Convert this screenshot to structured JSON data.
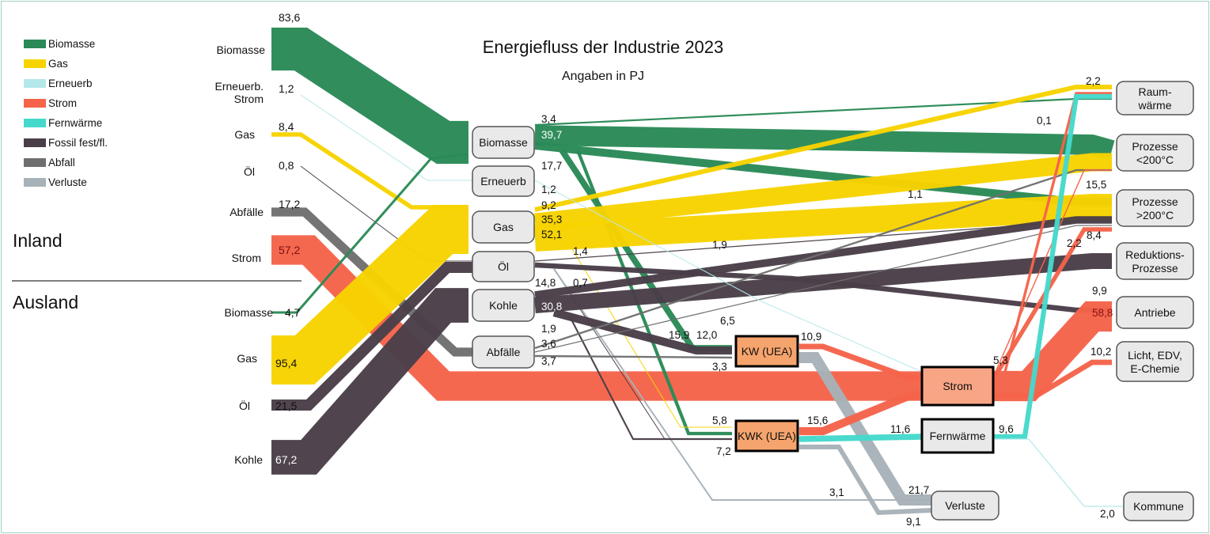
{
  "title": "Energiefluss der Industrie 2023",
  "subtitle": "Angaben in PJ",
  "regions": {
    "inland": "Inland",
    "ausland": "Ausland"
  },
  "colors": {
    "biomasse": "#2a8a57",
    "gas": "#f7d300",
    "erneuerb": "#b3e8ea",
    "strom": "#f5634a",
    "fernwaerme": "#45d9cb",
    "fossil": "#4a3f49",
    "abfall": "#6f6f6f",
    "verluste": "#a7b2b8",
    "node_fill": "#e9e9e9",
    "kw_fill": "#f6a46d",
    "strom_fill": "#f8a586"
  },
  "legend": [
    {
      "label": "Biomasse",
      "color": "biomasse"
    },
    {
      "label": "Gas",
      "color": "gas"
    },
    {
      "label": "Erneuerb",
      "color": "erneuerb"
    },
    {
      "label": "Strom",
      "color": "strom"
    },
    {
      "label": "Fernwärme",
      "color": "fernwaerme"
    },
    {
      "label": "Fossil fest/fl.",
      "color": "fossil"
    },
    {
      "label": "Abfall",
      "color": "abfall"
    },
    {
      "label": "Verluste",
      "color": "verluste"
    }
  ],
  "sources": [
    {
      "label": "Biomasse",
      "value": "83,6",
      "region": "Inland"
    },
    {
      "label": "Erneuerb. Strom",
      "value": "1,2",
      "region": "Inland"
    },
    {
      "label": "Gas",
      "value": "8,4",
      "region": "Inland"
    },
    {
      "label": "Öl",
      "value": "0,8",
      "region": "Inland"
    },
    {
      "label": "Abfälle",
      "value": "17,2",
      "region": "Inland"
    },
    {
      "label": "Strom",
      "value": "57,2",
      "region": "Inland"
    },
    {
      "label": "Biomasse",
      "value": "4,7",
      "region": "Ausland"
    },
    {
      "label": "Gas",
      "value": "95,4",
      "region": "Ausland"
    },
    {
      "label": "Öl",
      "value": "21,5",
      "region": "Ausland"
    },
    {
      "label": "Kohle",
      "value": "67,2",
      "region": "Ausland"
    }
  ],
  "nodes": [
    {
      "id": "biomasse",
      "label": "Biomasse",
      "style": "plain"
    },
    {
      "id": "erneuerb",
      "label": "Erneuerb",
      "style": "plain"
    },
    {
      "id": "gas",
      "label": "Gas",
      "style": "plain"
    },
    {
      "id": "oel",
      "label": "Öl",
      "style": "plain"
    },
    {
      "id": "kohle",
      "label": "Kohle",
      "style": "plain"
    },
    {
      "id": "abfaelle",
      "label": "Abfälle",
      "style": "plain"
    },
    {
      "id": "kw",
      "label": "KW (UEA)",
      "style": "kw"
    },
    {
      "id": "kwk",
      "label": "KWK (UEA)",
      "style": "kw"
    },
    {
      "id": "strom",
      "label": "Strom",
      "style": "strom"
    },
    {
      "id": "fernwaerme",
      "label": "Fernwärme",
      "style": "bold"
    },
    {
      "id": "verluste",
      "label": "Verluste",
      "style": "plain"
    },
    {
      "id": "raumwaerme",
      "label": "Raum-|wärme",
      "style": "plain"
    },
    {
      "id": "p_lt200",
      "label": "Prozesse|<200°C",
      "style": "plain"
    },
    {
      "id": "p_gt200",
      "label": "Prozesse|>200°C",
      "style": "plain"
    },
    {
      "id": "reduktion",
      "label": "Reduktions-|Prozesse",
      "style": "plain"
    },
    {
      "id": "antriebe",
      "label": "Antriebe",
      "style": "plain"
    },
    {
      "id": "licht",
      "label": "Licht, EDV,|E-Chemie",
      "style": "plain"
    },
    {
      "id": "kommune",
      "label": "Kommune",
      "style": "plain"
    }
  ],
  "flows": [
    {
      "from": "Biomasse (Inland)",
      "to": "biomasse",
      "value": 83.6,
      "color": "biomasse"
    },
    {
      "from": "Erneuerb. Strom",
      "to": "erneuerb",
      "value": 1.2,
      "color": "erneuerb"
    },
    {
      "from": "Gas (Inland)",
      "to": "gas",
      "value": 8.4,
      "color": "gas"
    },
    {
      "from": "Öl (Inland)",
      "to": "oel",
      "value": 0.8,
      "color": "fossil"
    },
    {
      "from": "Abfälle",
      "to": "abfaelle",
      "value": 17.2,
      "color": "abfall"
    },
    {
      "from": "Strom (Inland)",
      "to": "strom",
      "value": 57.2,
      "color": "strom"
    },
    {
      "from": "Biomasse (Ausland)",
      "to": "biomasse",
      "value": 4.7,
      "color": "biomasse"
    },
    {
      "from": "Gas (Ausland)",
      "to": "gas",
      "value": 95.4,
      "color": "gas"
    },
    {
      "from": "Öl (Ausland)",
      "to": "oel",
      "value": 21.5,
      "color": "fossil"
    },
    {
      "from": "Kohle (Ausland)",
      "to": "kohle",
      "value": 67.2,
      "color": "fossil"
    },
    {
      "from": "biomasse",
      "to": "raumwaerme",
      "value": 3.4,
      "color": "biomasse"
    },
    {
      "from": "biomasse",
      "to": "p_lt200",
      "value": 39.7,
      "color": "biomasse"
    },
    {
      "from": "biomasse",
      "to": "p_gt200",
      "value": 15.5,
      "color": "biomasse"
    },
    {
      "from": "biomasse",
      "to": "kw",
      "value": 12.0,
      "color": "biomasse"
    },
    {
      "from": "biomasse",
      "to": "kwk",
      "value": 6.5,
      "color": "biomasse"
    },
    {
      "from": "gas",
      "to": "raumwaerme",
      "value": 9.2,
      "color": "gas"
    },
    {
      "from": "gas",
      "to": "p_lt200",
      "value": 35.3,
      "color": "gas"
    },
    {
      "from": "gas",
      "to": "p_gt200",
      "value": 52.1,
      "color": "gas"
    },
    {
      "from": "gas",
      "to": "kwk",
      "value": 1.4,
      "color": "gas"
    },
    {
      "from": "oel",
      "to": "p_gt200",
      "value": 1.9,
      "color": "fossil"
    },
    {
      "from": "oel",
      "to": "antriebe",
      "value": 9.9,
      "color": "fossil"
    },
    {
      "from": "oel",
      "to": "kwk",
      "value": 0.7,
      "color": "fossil"
    },
    {
      "from": "oel",
      "to": "verluste",
      "value": 3.1,
      "color": "verluste"
    },
    {
      "from": "kohle",
      "to": "p_gt200",
      "value": 14.8,
      "color": "fossil"
    },
    {
      "from": "kohle",
      "to": "reduktion",
      "value": 30.8,
      "color": "fossil"
    },
    {
      "from": "kohle",
      "to": "kw",
      "value": 15.9,
      "color": "fossil"
    },
    {
      "from": "kohle",
      "to": "kwk",
      "value": 3.3,
      "color": "fossil"
    },
    {
      "from": "abfaelle",
      "to": "p_lt200",
      "value": 3.6,
      "color": "abfall"
    },
    {
      "from": "abfaelle",
      "to": "p_gt200",
      "value": 1.9,
      "color": "abfall"
    },
    {
      "from": "abfaelle",
      "to": "kw",
      "value": 3.7,
      "color": "abfall"
    },
    {
      "from": "kw",
      "to": "strom",
      "value": 10.9,
      "color": "strom"
    },
    {
      "from": "kw",
      "to": "verluste",
      "value": 21.7,
      "color": "verluste"
    },
    {
      "from": "kwk",
      "to": "strom",
      "value": 15.6,
      "color": "strom"
    },
    {
      "from": "kwk",
      "to": "fernwaerme",
      "value": 11.6,
      "color": "fernwaerme"
    },
    {
      "from": "kwk",
      "to": "verluste",
      "value": 9.1,
      "color": "verluste"
    },
    {
      "from": "strom",
      "to": "antriebe",
      "value": 58.8,
      "color": "strom"
    },
    {
      "from": "strom",
      "to": "licht",
      "value": 10.2,
      "color": "strom"
    },
    {
      "from": "strom",
      "to": "p_gt200",
      "value": 8.4,
      "color": "strom"
    },
    {
      "from": "strom",
      "to": "p_lt200",
      "value": 2.2,
      "color": "strom"
    },
    {
      "from": "strom",
      "to": "raumwaerme",
      "value": 5.3,
      "color": "strom"
    },
    {
      "from": "fernwaerme",
      "to": "raumwaerme",
      "value": 9.6,
      "color": "fernwaerme"
    },
    {
      "from": "fernwaerme",
      "to": "kommune",
      "value": 2.0,
      "color": "erneuerb"
    },
    {
      "from": "erneuerb",
      "to": "strom",
      "value": 1.2,
      "color": "erneuerb"
    }
  ],
  "value_labels": [
    "3,4",
    "39,7",
    "17,7",
    "1,2",
    "9,2",
    "35,3",
    "52,1",
    "1,4",
    "14,8",
    "0,7",
    "30,8",
    "1,9",
    "3,6",
    "3,7",
    "1,9",
    "15,9",
    "12,0",
    "6,5",
    "3,3",
    "10,9",
    "5,8",
    "15,6",
    "7,2",
    "11,6",
    "9,6",
    "5,3",
    "3,1",
    "21,7",
    "9,1",
    "2,2",
    "0,1",
    "1,1",
    "15,5",
    "2,2",
    "8,4",
    "9,9",
    "58,8",
    "10,2",
    "2,0"
  ]
}
